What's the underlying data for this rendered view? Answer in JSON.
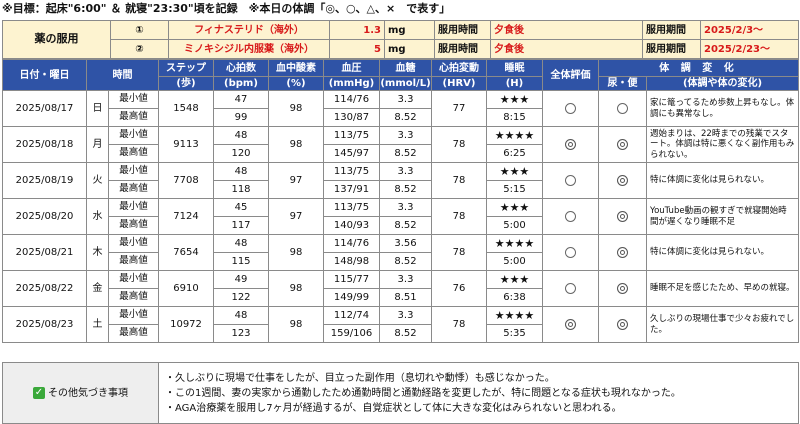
{
  "goal_line": "※目標：起床\"6:00\" ＆ 就寝\"23:30\"頃を記録　※本日の体調「◎、○、△、×　で表す」",
  "medication": {
    "label": "薬の服用",
    "rows": [
      {
        "num": "①",
        "drug": "フィナステリド（海外）",
        "dose": "1.3",
        "unit": "mg",
        "time_label": "服用時間",
        "time_value": "夕食後",
        "period_label": "服用期間",
        "period_value": "2025/2/3〜"
      },
      {
        "num": "②",
        "drug": "ミノキシジル内服薬（海外）",
        "dose": "5",
        "unit": "mg",
        "time_label": "服用時間",
        "time_value": "夕食後",
        "period_label": "服用期間",
        "period_value": "2025/2/23〜"
      }
    ]
  },
  "headers": {
    "date": "日付・曜日",
    "time": "時間",
    "steps": [
      "ステップ",
      "(歩)"
    ],
    "hr": [
      "心拍数",
      "(bpm)"
    ],
    "spo2": [
      "血中酸素",
      "(%)"
    ],
    "bp": [
      "血圧",
      "(mmHg)"
    ],
    "glucose": [
      "血糖",
      "(mmol/L)"
    ],
    "hrv": [
      "心拍変動",
      "(HRV)"
    ],
    "sleep": [
      "睡眠",
      "(H)"
    ],
    "condition_group": [
      "体 調 変 化",
      "(体調や体の変化)"
    ],
    "overall": "全体評価",
    "excretion": "尿・便"
  },
  "min_label": "最小値",
  "max_label": "最高値",
  "days": [
    {
      "date": "2025/08/17",
      "dow": "日",
      "steps": "1548",
      "hr_min": "47",
      "hr_max": "99",
      "spo2": "98",
      "bp_min": "114/76",
      "bp_max": "130/87",
      "glu_min": "3.3",
      "glu_max": "8.52",
      "hrv": "77",
      "stars": "★★★",
      "sleep": "8:15",
      "overall": "single",
      "excretion": "single",
      "note": "家に篭ってるため歩数上昇もなし。体調にも異常なし。"
    },
    {
      "date": "2025/08/18",
      "dow": "月",
      "steps": "9113",
      "hr_min": "48",
      "hr_max": "120",
      "spo2": "98",
      "bp_min": "113/75",
      "bp_max": "145/97",
      "glu_min": "3.3",
      "glu_max": "8.52",
      "hrv": "78",
      "stars": "★★★★",
      "sleep": "6:25",
      "overall": "double",
      "excretion": "double",
      "note": "週始まりは、22時までの残業でスタート。体調は特に悪くなく副作用もみられない。"
    },
    {
      "date": "2025/08/19",
      "dow": "火",
      "steps": "7708",
      "hr_min": "48",
      "hr_max": "118",
      "spo2": "97",
      "bp_min": "113/75",
      "bp_max": "137/91",
      "glu_min": "3.3",
      "glu_max": "8.52",
      "hrv": "78",
      "stars": "★★★",
      "sleep": "5:15",
      "overall": "single",
      "excretion": "double",
      "note": "特に体調に変化は見られない。"
    },
    {
      "date": "2025/08/20",
      "dow": "水",
      "steps": "7124",
      "hr_min": "45",
      "hr_max": "117",
      "spo2": "97",
      "bp_min": "113/75",
      "bp_max": "140/93",
      "glu_min": "3.3",
      "glu_max": "8.52",
      "hrv": "78",
      "stars": "★★★",
      "sleep": "5:00",
      "overall": "single",
      "excretion": "double",
      "note": "YouTube動画の観すぎで就寝開始時間が遅くなり睡眠不足"
    },
    {
      "date": "2025/08/21",
      "dow": "木",
      "steps": "7654",
      "hr_min": "48",
      "hr_max": "115",
      "spo2": "98",
      "bp_min": "114/76",
      "bp_max": "148/98",
      "glu_min": "3.56",
      "glu_max": "8.52",
      "hrv": "78",
      "stars": "★★★★",
      "sleep": "5:00",
      "overall": "single",
      "excretion": "double",
      "note": "特に体調に変化は見られない。"
    },
    {
      "date": "2025/08/22",
      "dow": "金",
      "steps": "6910",
      "hr_min": "49",
      "hr_max": "122",
      "spo2": "98",
      "bp_min": "115/77",
      "bp_max": "149/99",
      "glu_min": "3.3",
      "glu_max": "8.51",
      "hrv": "76",
      "stars": "★★★",
      "sleep": "6:38",
      "overall": "single",
      "excretion": "double",
      "note": "睡眠不足を感じたため、早めの就寝。"
    },
    {
      "date": "2025/08/23",
      "dow": "土",
      "steps": "10972",
      "hr_min": "48",
      "hr_max": "123",
      "spo2": "98",
      "bp_min": "112/74",
      "bp_max": "159/106",
      "glu_min": "3.3",
      "glu_max": "8.52",
      "hrv": "78",
      "stars": "★★★★",
      "sleep": "5:35",
      "overall": "double",
      "excretion": "double",
      "note": "久しぶりの現場仕事で少々お疲れでした。"
    }
  ],
  "other_notes": {
    "label": "その他気づき事項",
    "lines": [
      "・久しぶりに現場で仕事をしたが、目立った副作用（息切れや動悸）も感じなかった。",
      "・この1週間、妻の実家から通勤したため通勤時間と通勤経路を変更したが、特に問題となる症状も現れなかった。",
      "・AGA治療薬を服用し7ヶ月が経過するが、自覚症状として体に大きな変化はみられないと思われる。"
    ]
  }
}
